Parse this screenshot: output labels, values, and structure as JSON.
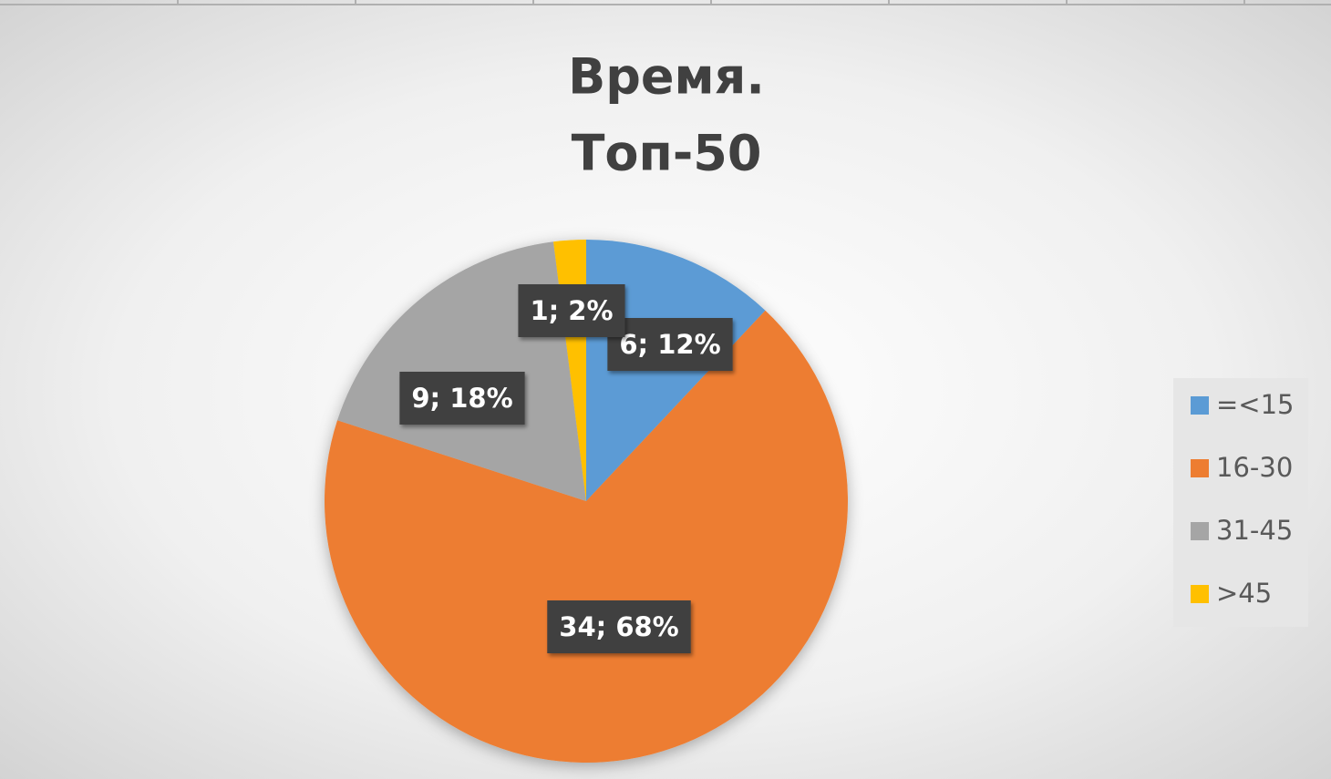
{
  "chart_data": {
    "type": "pie",
    "title": [
      "Время.",
      "Топ-50"
    ],
    "categories": [
      "=<15",
      "16-30",
      "31-45",
      ">45"
    ],
    "values": [
      6,
      34,
      9,
      1
    ],
    "value_labels": [
      "6; 12%",
      "34; 68%",
      "9; 18%",
      "1; 2%"
    ],
    "colors": [
      "#5b9bd5",
      "#ed7d31",
      "#a5a5a5",
      "#ffc000"
    ],
    "legend": "right"
  }
}
